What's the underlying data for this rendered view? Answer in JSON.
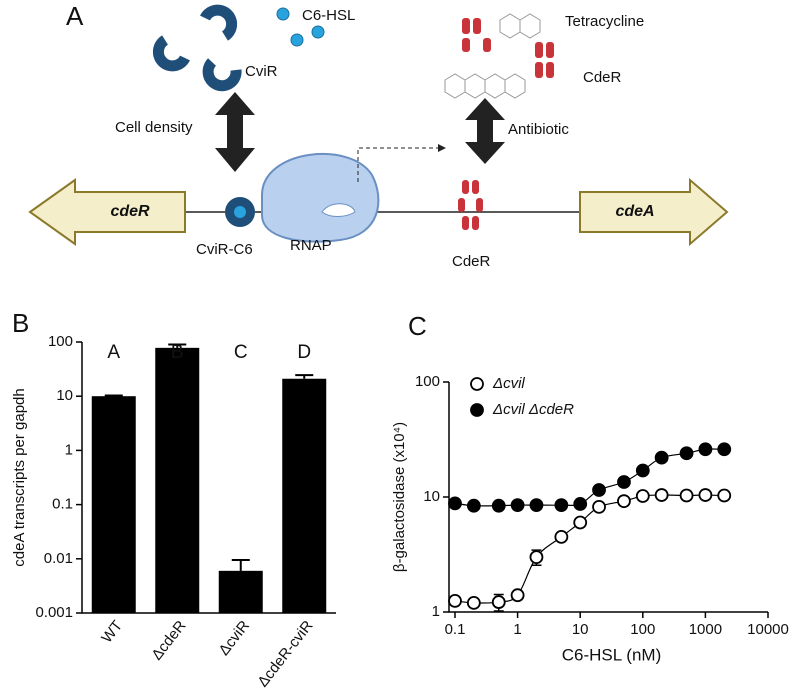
{
  "panel_labels": [
    "A",
    "B",
    "C"
  ],
  "diagram": {
    "c6hsl": "C6-HSL",
    "cvir": "CviR",
    "cell_density": "Cell density",
    "tetracycline": "Tetracycline",
    "cder_free": "CdeR",
    "antibiotic": "Antibiotic",
    "gene_left": "cdeR",
    "gene_right": "cdeA",
    "cvir_c6": "CviR-C6",
    "rnap": "RNAP",
    "cder_bound": "CdeR"
  },
  "chart_data": [
    {
      "type": "bar",
      "y_label": "cdeA transcripts per gapdh",
      "categories": [
        "WT",
        "ΔcdeR",
        "ΔcviR",
        "ΔcdeR-cviR"
      ],
      "values": [
        10,
        78,
        0.006,
        21
      ],
      "errors": [
        0.3,
        12,
        0.0035,
        3.5
      ],
      "annotations": [
        "A",
        "B",
        "C",
        "D"
      ],
      "color": "#000000",
      "log_y": true,
      "ylim": [
        0.001,
        100
      ],
      "yticks": [
        0.001,
        0.01,
        0.1,
        1,
        10,
        100
      ]
    },
    {
      "type": "scatter",
      "x_label": "C6-HSL (nM)",
      "y_label": "β-galactosidase (x10⁴)",
      "x": [
        0.1,
        0.2,
        0.5,
        1,
        2,
        5,
        10,
        20,
        50,
        100,
        200,
        500,
        1000,
        2000
      ],
      "series": [
        {
          "name": "Δcvil",
          "marker": "open",
          "color": "#000000",
          "values": [
            1.25,
            1.2,
            1.22,
            1.4,
            3.0,
            4.5,
            6.0,
            8.2,
            9.2,
            10.2,
            10.4,
            10.3,
            10.4,
            10.3
          ],
          "errors": [
            null,
            null,
            0.2,
            null,
            0.45,
            null,
            null,
            null,
            null,
            null,
            null,
            null,
            null,
            null
          ]
        },
        {
          "name": "Δcvil ΔcdeR",
          "marker": "filled",
          "color": "#000000",
          "values": [
            8.8,
            8.4,
            8.4,
            8.5,
            8.5,
            8.5,
            8.7,
            11.5,
            13.5,
            17,
            22,
            24,
            26,
            26
          ]
        }
      ],
      "log_x": true,
      "log_y": true,
      "xlim": [
        0.1,
        10000
      ],
      "ylim": [
        1,
        100
      ],
      "xticks": [
        0.1,
        1,
        10,
        100,
        1000,
        10000
      ],
      "yticks": [
        1,
        10,
        100
      ],
      "legend": "upper left"
    }
  ]
}
